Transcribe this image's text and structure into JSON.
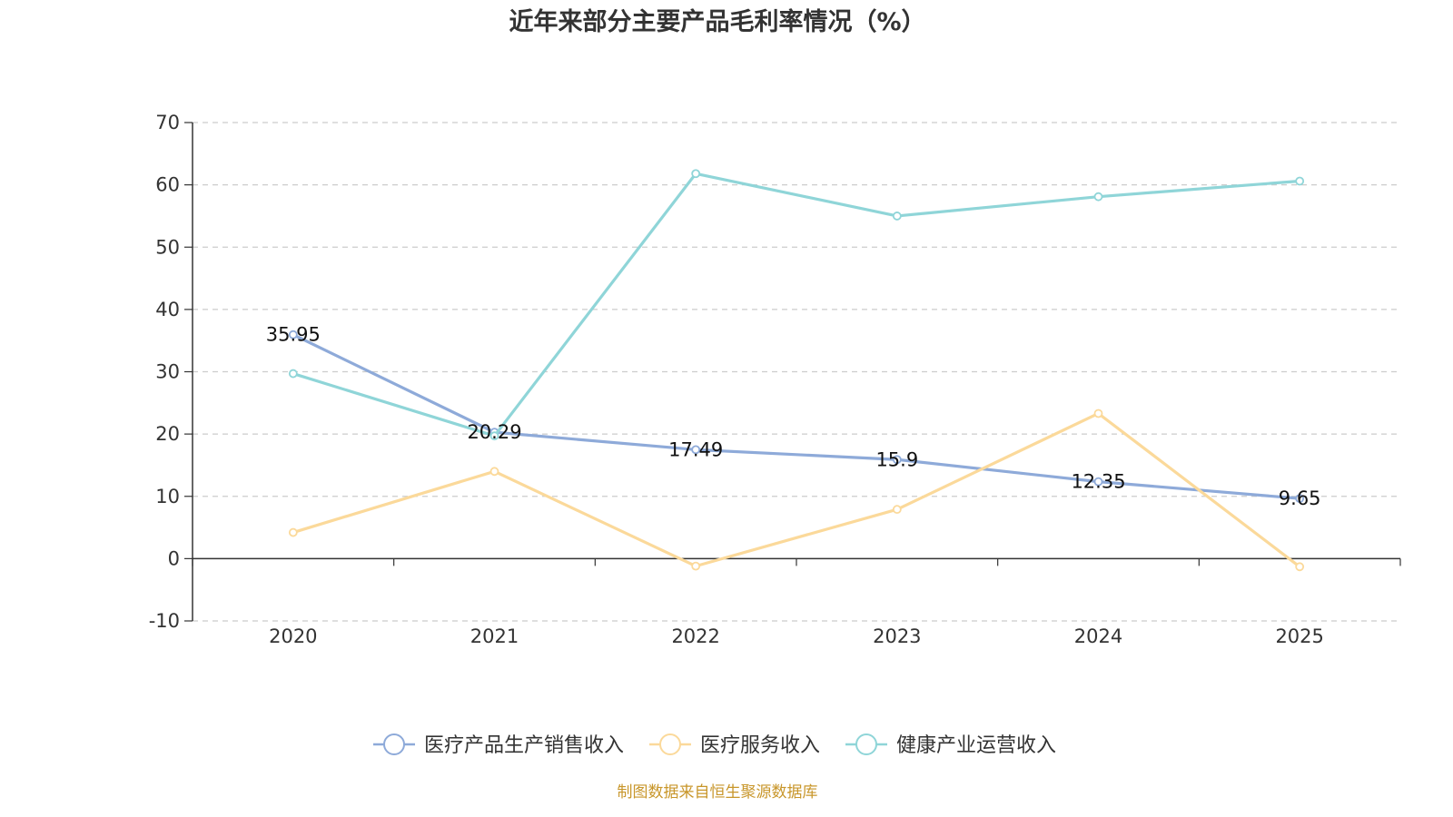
{
  "chart_data": {
    "type": "line",
    "title": "近年来部分主要产品毛利率情况（%）",
    "categories": [
      "2020",
      "2021",
      "2022",
      "2023",
      "2024",
      "2025"
    ],
    "ylim": [
      -10,
      70
    ],
    "yticks": [
      -10,
      0,
      10,
      20,
      30,
      40,
      50,
      60,
      70
    ],
    "grid": true,
    "legend_position": "bottom",
    "series": [
      {
        "name": "医疗产品生产销售收入",
        "color": "#8eaad9",
        "values": [
          35.95,
          20.29,
          17.49,
          15.9,
          12.35,
          9.65
        ],
        "data_labels": [
          "35.95",
          "20.29",
          "17.49",
          "15.9",
          "12.35",
          "9.65"
        ]
      },
      {
        "name": "医疗服务收入",
        "color": "#fbd99a",
        "values": [
          4.2,
          14.0,
          -1.2,
          7.9,
          23.3,
          -1.3
        ]
      },
      {
        "name": "健康产业运营收入",
        "color": "#8fd5d8",
        "values": [
          29.7,
          19.7,
          61.8,
          55.0,
          58.1,
          60.6
        ]
      }
    ]
  },
  "source_note": "制图数据来自恒生聚源数据库"
}
